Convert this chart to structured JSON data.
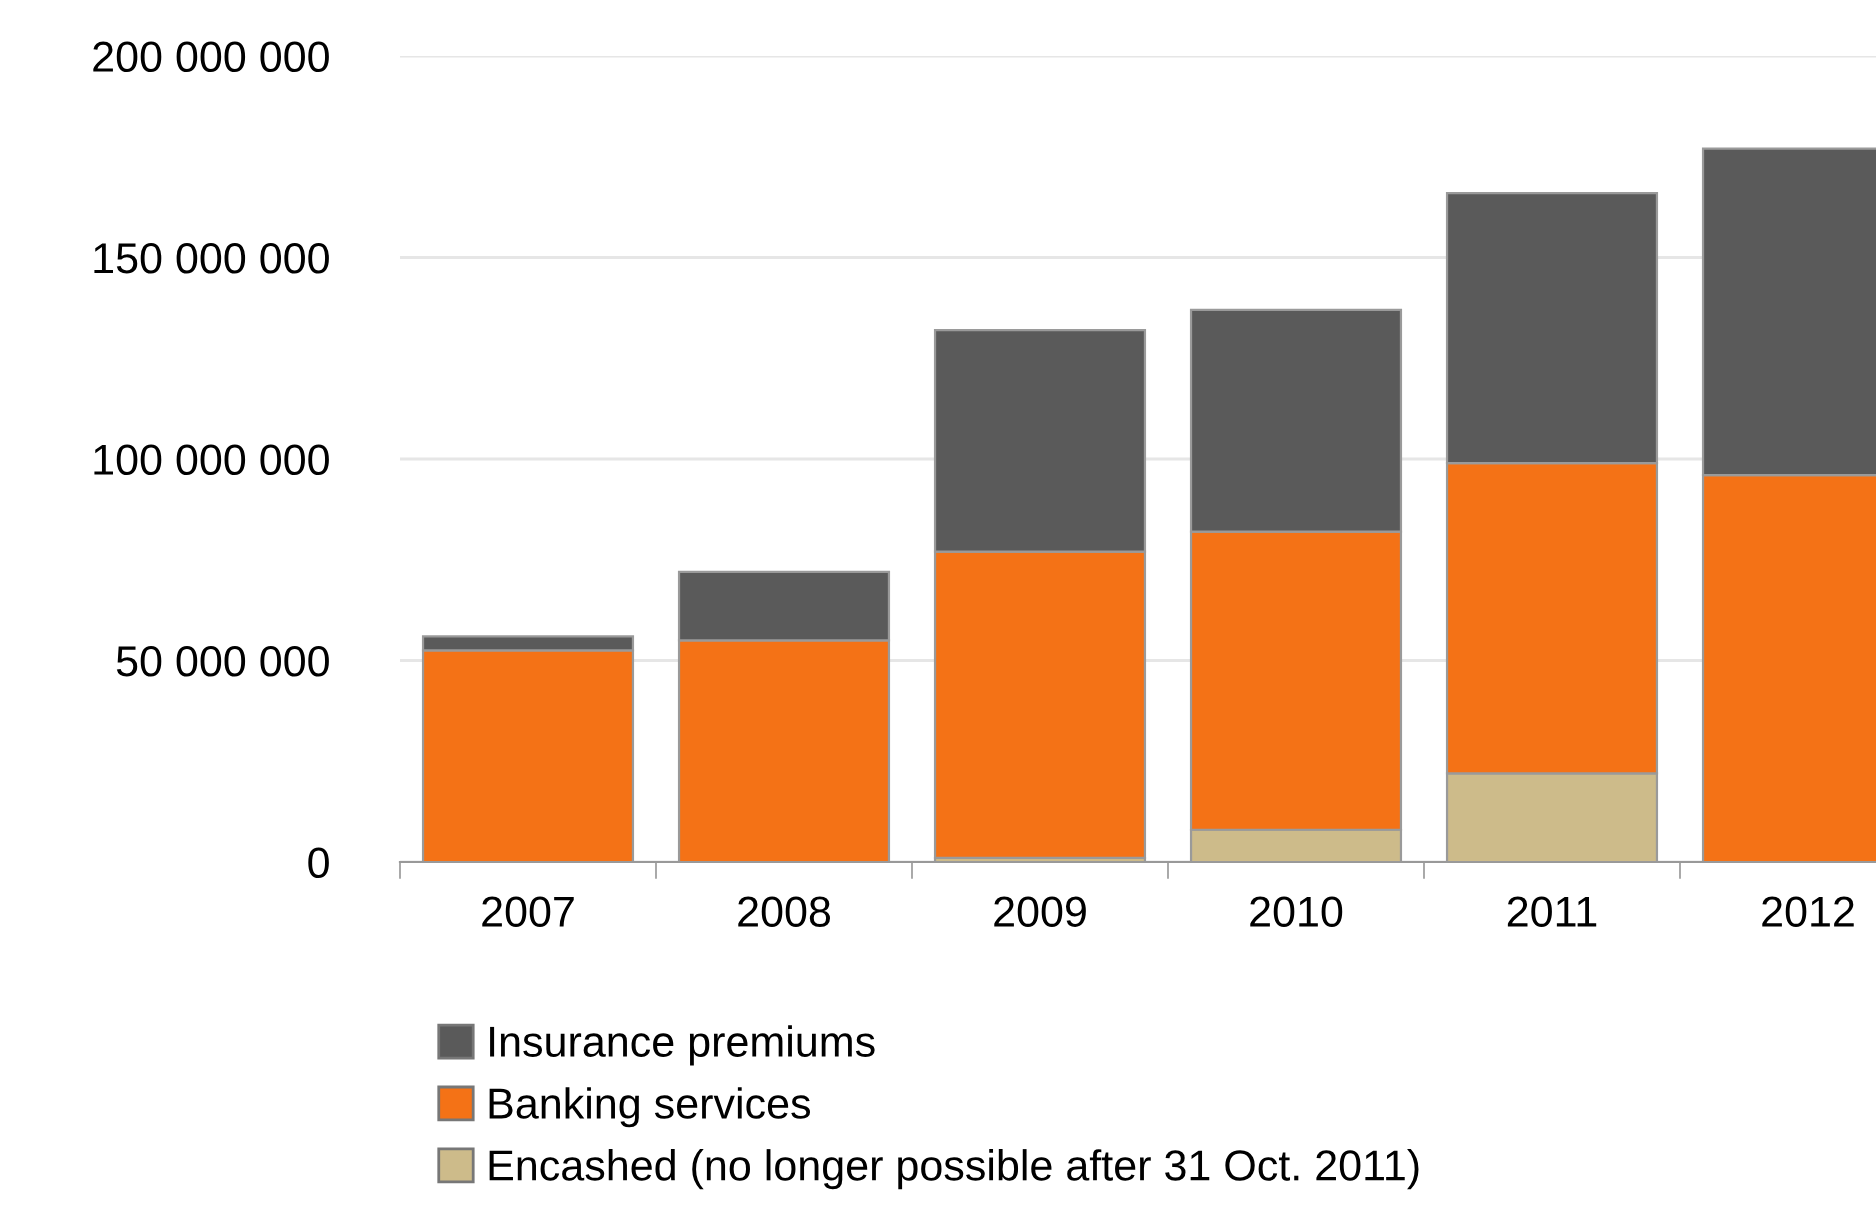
{
  "chart_data": {
    "type": "bar",
    "stacked": true,
    "categories": [
      "2007",
      "2008",
      "2009",
      "2010",
      "2011",
      "2012"
    ],
    "series": [
      {
        "name": "Encashed (no longer possible after 31 Oct. 2011)",
        "color": "#cdbb8a",
        "values": [
          0,
          0,
          1000000,
          8000000,
          22000000,
          0
        ]
      },
      {
        "name": "Banking services",
        "color": "#f47216",
        "values": [
          52500000,
          55000000,
          76000000,
          74000000,
          77000000,
          96000000
        ]
      },
      {
        "name": "Insurance premiums",
        "color": "#5a5a5a",
        "values": [
          3500000,
          17000000,
          55000000,
          55000000,
          67000000,
          81000000
        ]
      }
    ],
    "ylim": [
      0,
      200000000
    ],
    "yticks": [
      {
        "value": 0,
        "label": "0"
      },
      {
        "value": 50000000,
        "label": "50 000 000"
      },
      {
        "value": 100000000,
        "label": "100 000 000"
      },
      {
        "value": 150000000,
        "label": "150 000 000"
      },
      {
        "value": 200000000,
        "label": "200 000 000"
      }
    ],
    "grid": "y",
    "legend": "bottom"
  }
}
